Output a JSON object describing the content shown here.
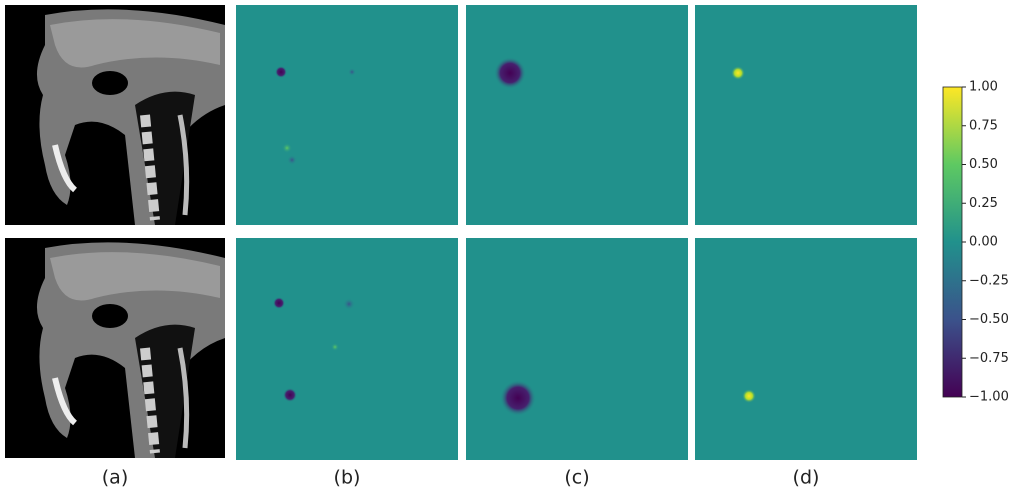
{
  "panel_labels": [
    "(a)",
    "(b)",
    "(c)",
    "(d)"
  ],
  "colorbar": {
    "lim": [
      -1,
      1
    ],
    "ticks": [
      {
        "value": 1,
        "label": "1.00"
      },
      {
        "value": 0.75,
        "label": "0.75"
      },
      {
        "value": 0.5,
        "label": "0.50"
      },
      {
        "value": 0.25,
        "label": "0.25"
      },
      {
        "value": 0,
        "label": "0.00"
      },
      {
        "value": -0.25,
        "label": "−0.25"
      },
      {
        "value": -0.5,
        "label": "−0.50"
      },
      {
        "value": -0.75,
        "label": "−0.75"
      },
      {
        "value": -1,
        "label": "−1.00"
      }
    ]
  }
}
